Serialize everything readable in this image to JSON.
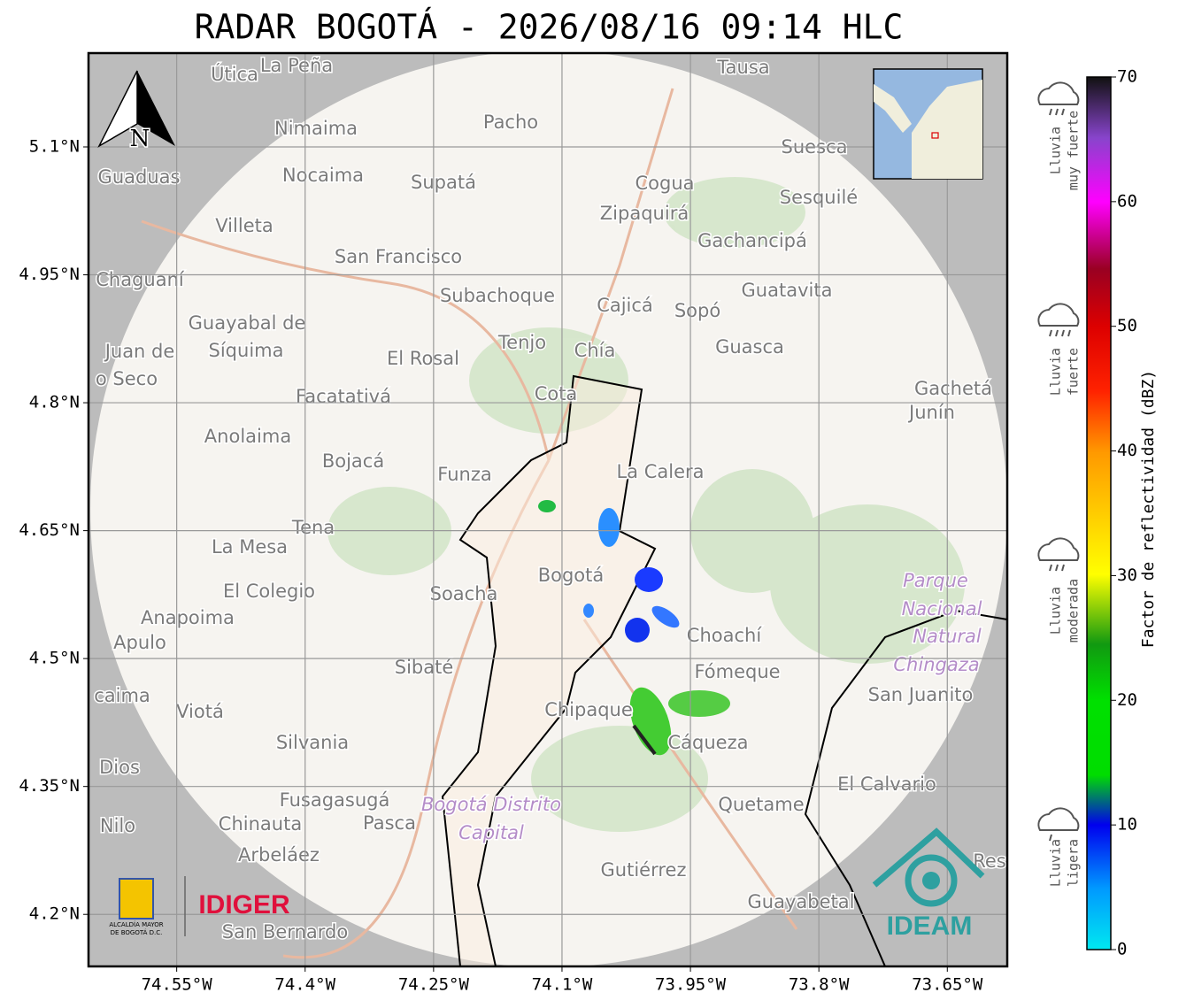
{
  "chart_data": {
    "type": "map",
    "title": "RADAR BOGOTÁ - 2026/08/16 09:14 HLC",
    "xlim": [
      -74.653,
      -73.58
    ],
    "ylim": [
      4.139,
      5.21
    ],
    "xticks": [
      {
        "value": -74.55,
        "label": "74.55°W"
      },
      {
        "value": -74.4,
        "label": "74.4°W"
      },
      {
        "value": -74.25,
        "label": "74.25°W"
      },
      {
        "value": -74.1,
        "label": "74.1°W"
      },
      {
        "value": -73.95,
        "label": "73.95°W"
      },
      {
        "value": -73.8,
        "label": "73.8°W"
      },
      {
        "value": -73.65,
        "label": "73.65°W"
      }
    ],
    "yticks": [
      {
        "value": 4.2,
        "label": "4.2°N"
      },
      {
        "value": 4.35,
        "label": "4.35°N"
      },
      {
        "value": 4.5,
        "label": "4.5°N"
      },
      {
        "value": 4.65,
        "label": "4.65°N"
      },
      {
        "value": 4.8,
        "label": "4.8°N"
      },
      {
        "value": 4.95,
        "label": "4.95°N"
      },
      {
        "value": 5.1,
        "label": "5.1°N"
      }
    ],
    "grid": true,
    "colorbar": {
      "label": "Factor de reflectividad (dBZ)",
      "lim": [
        0,
        70
      ],
      "ticks": [
        0,
        10,
        20,
        30,
        40,
        50,
        60,
        70
      ]
    },
    "legend": [
      {
        "lines": [
          "Lluvia",
          "muy fuerte"
        ]
      },
      {
        "lines": [
          "Lluvia",
          "fuerte"
        ]
      },
      {
        "lines": [
          "Lluvia",
          "moderada"
        ]
      },
      {
        "lines": [
          "Lluvia",
          "ligera"
        ]
      }
    ]
  },
  "north": "N",
  "logos": {
    "alcaldia": [
      "ALCALDÍA MAYOR",
      "DE BOGOTÁ D.C."
    ],
    "idiger": "IDIGER",
    "ideam": "IDEAM"
  },
  "places": [
    "Útica",
    "La Peña",
    "Tausa",
    "Pacho",
    "Nimaima",
    "Guaduas",
    "Nocaima",
    "Supatá",
    "Cogua",
    "Suesca",
    "Sesquilé",
    "Villeta",
    "Zipaquirá",
    "Gachancipá",
    "San Francisco",
    "Chaguaní",
    "Guatavita",
    "Subachoque",
    "Cajicá",
    "Sopó",
    "Guayabal de",
    "Síquima",
    "Juan de",
    "o Seco",
    "Tenjo",
    "Chía",
    "Guasca",
    "El Rosal",
    "Facatativá",
    "Cota",
    "Gachetá",
    "Junín",
    "Anolaima",
    "Bojacá",
    "Funza",
    "La Calera",
    "Tena",
    "La Mesa",
    "Bogotá",
    "Soacha",
    "El Colegio",
    "Parque",
    "Nacional",
    "Natural",
    "Chingaza",
    "Anapoima",
    "Choachí",
    "Apulo",
    "Sibaté",
    "Fómeque",
    "San Juanito",
    "caima",
    "Chipaque",
    "Viotá",
    "Silvania",
    "Cáqueza",
    "Dios",
    "El Calvario",
    "Fusagasugá",
    "Bogotá Distrito",
    "Capital",
    "Quetame",
    "Nilo",
    "Chinauta",
    "Pasca",
    "Arbeláez",
    "Gutiérrez",
    "Res",
    "Guayabetal",
    "San Bernardo"
  ]
}
